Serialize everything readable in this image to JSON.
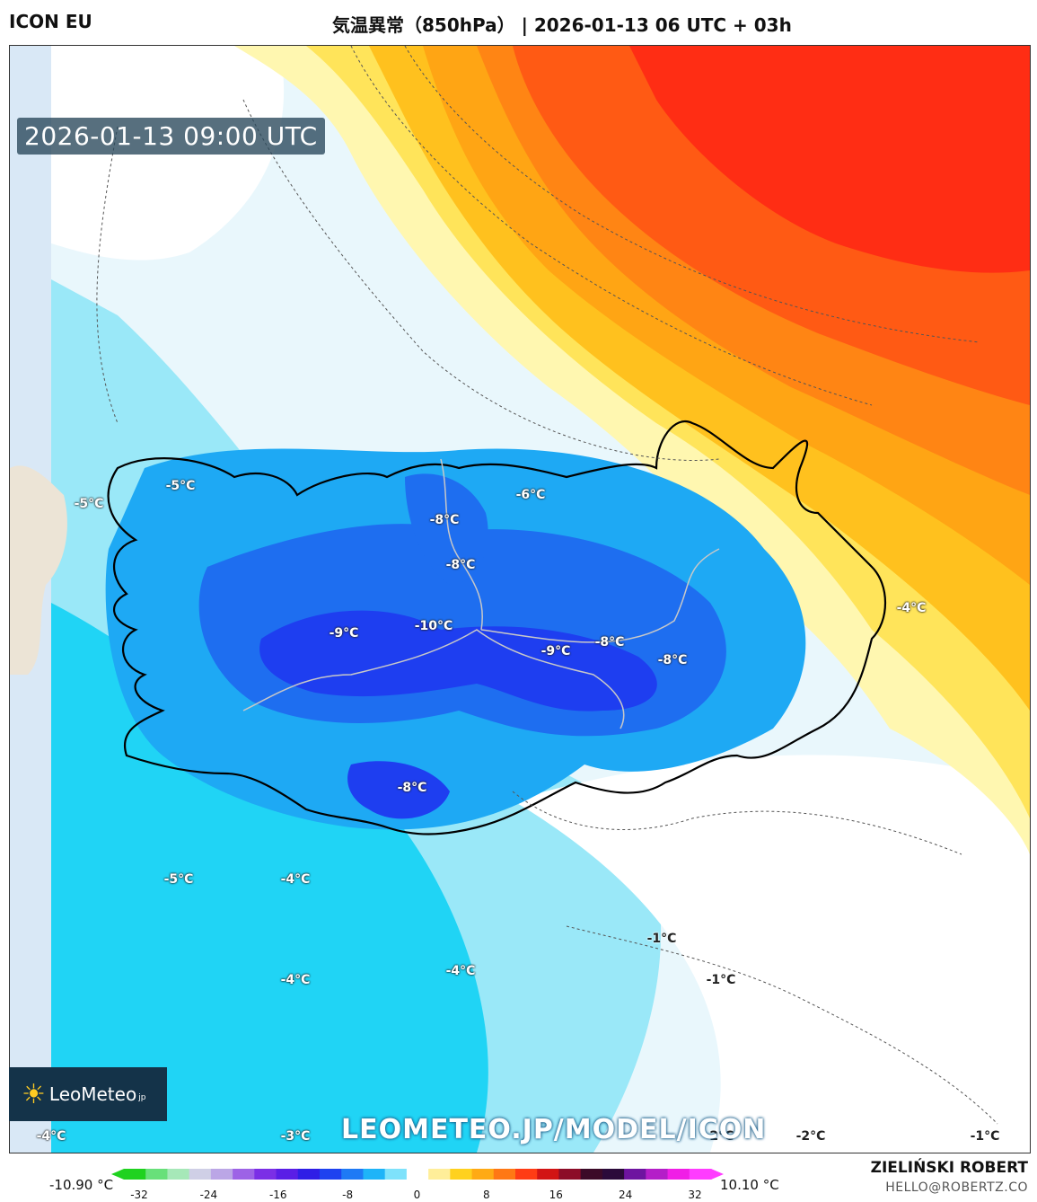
{
  "header": {
    "model": "ICON EU",
    "title": "気温異常（850hPa） | 2026-01-13 06 UTC + 03h"
  },
  "map": {
    "valid_time": "2026-01-13 09:00 UTC",
    "labels": [
      {
        "text": "-5°C",
        "style": "light"
      },
      {
        "text": "-5°C",
        "style": "light"
      },
      {
        "text": "-6°C",
        "style": "light"
      },
      {
        "text": "-8°C",
        "style": "light"
      },
      {
        "text": "-8°C",
        "style": "light"
      },
      {
        "text": "-10°C",
        "style": "light"
      },
      {
        "text": "-9°C",
        "style": "light"
      },
      {
        "text": "-9°C",
        "style": "light"
      },
      {
        "text": "-8°C",
        "style": "light"
      },
      {
        "text": "-8°C",
        "style": "light"
      },
      {
        "text": "-4°C",
        "style": "light"
      },
      {
        "text": "-8°C",
        "style": "light"
      },
      {
        "text": "-5°C",
        "style": "light"
      },
      {
        "text": "-4°C",
        "style": "light"
      },
      {
        "text": "-1°C",
        "style": "dark"
      },
      {
        "text": "-4°C",
        "style": "light"
      },
      {
        "text": "-4°C",
        "style": "light"
      },
      {
        "text": "-1°C",
        "style": "dark"
      },
      {
        "text": "-4°C",
        "style": "light"
      },
      {
        "text": "-3°C",
        "style": "light"
      },
      {
        "text": "-2°C",
        "style": "dark"
      },
      {
        "text": "-2°C",
        "style": "dark"
      },
      {
        "text": "-1°C",
        "style": "dark"
      }
    ]
  },
  "branding": {
    "logo_text": "LeoMeteo",
    "logo_suffix": "jp",
    "watermark": "LEOMETEO.JP/MODEL/ICON",
    "author": "ZIELIŃSKI ROBERT",
    "email": "HELLO@ROBERTZ.CO"
  },
  "colorbar": {
    "min_label": "-10.90 °C",
    "max_label": "10.10 °C",
    "ticks": [
      "-32",
      "-24",
      "-16",
      "-8",
      "0",
      "8",
      "16",
      "24",
      "32"
    ],
    "colors": [
      "#1fd21f",
      "#68e07a",
      "#a6e8b8",
      "#cfcfe6",
      "#bba6e6",
      "#9d63e6",
      "#7b2fe6",
      "#5a1ee6",
      "#2f1ee6",
      "#1e42f0",
      "#1e7af5",
      "#1eb4f8",
      "#7ee2fb",
      "#ffffff",
      "#ffee99",
      "#ffd11e",
      "#ffaa14",
      "#ff7814",
      "#ff3c14",
      "#d21414",
      "#8c0c28",
      "#3c0a28",
      "#2b0a3a",
      "#6e14a0",
      "#b41ec8",
      "#f01ee6",
      "#ff3cff"
    ]
  },
  "icons": {
    "sun": "sun-logo-icon"
  }
}
